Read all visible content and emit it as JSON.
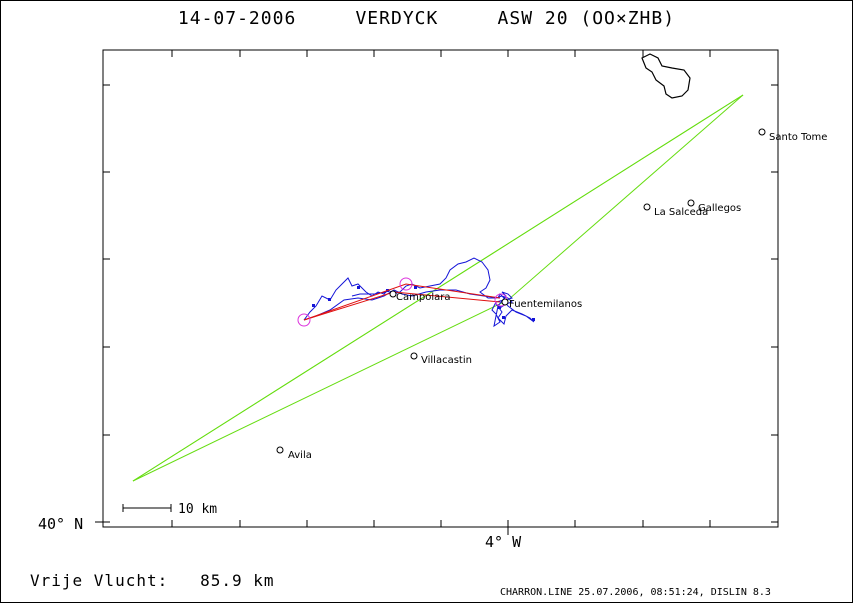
{
  "header": {
    "date": "14-07-2006",
    "pilot": "VERDYCK",
    "glider": "ASW 20 (OO×ZHB)"
  },
  "axes": {
    "lat_label": "40° N",
    "lon_label": "4° W"
  },
  "scale_bar": {
    "label": "10 km"
  },
  "places": [
    {
      "id": "santo-tome",
      "name": "Santo Tome"
    },
    {
      "id": "gallegos",
      "name": "Gallegos"
    },
    {
      "id": "la-salceda",
      "name": "La Salceda"
    },
    {
      "id": "campolara",
      "name": "Campolara"
    },
    {
      "id": "fuentemilanos",
      "name": "Fuentemilanos"
    },
    {
      "id": "villacastin",
      "name": "Villacastin"
    },
    {
      "id": "avila",
      "name": "Avila"
    }
  ],
  "colors": {
    "track": "#1414d8",
    "task_line": "#e01010",
    "triangle": "#66dd11",
    "turnpoint": "#dd33dd",
    "frame": "#000000"
  },
  "footer": {
    "left": "Vrije Vlucht:   85.9 km",
    "right": "CHARRON.LINE 25.07.2006, 08:51:24, DISLIN 8.3"
  }
}
